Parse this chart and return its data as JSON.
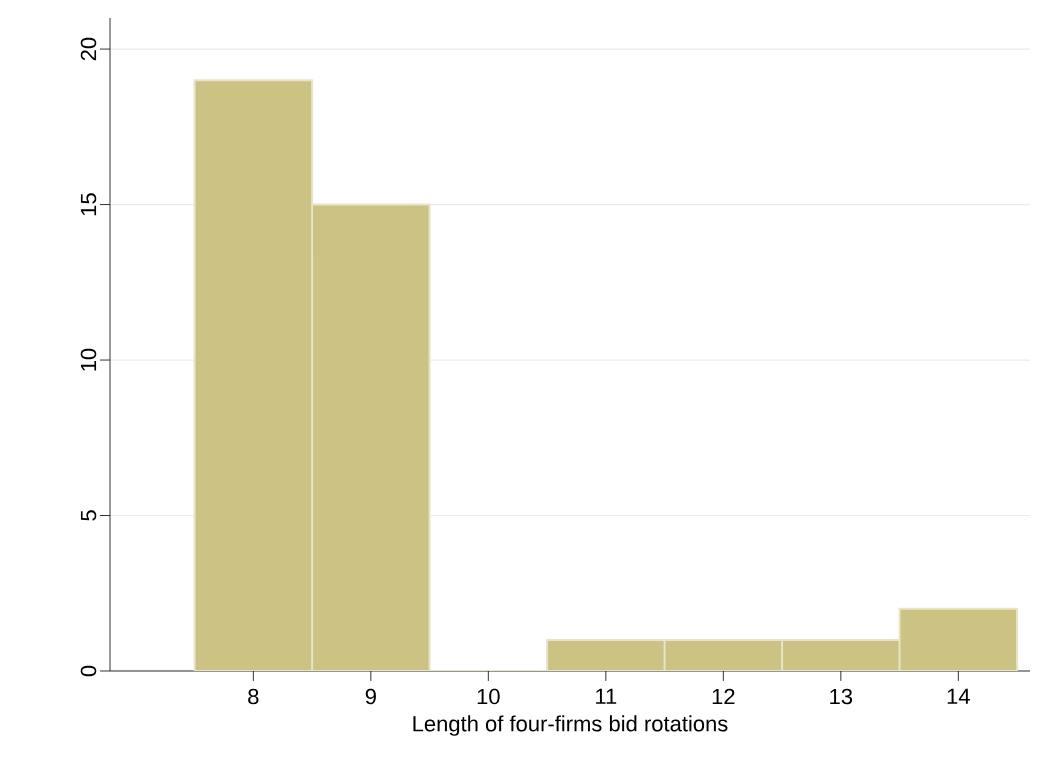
{
  "chart_data": {
    "type": "histogram",
    "xlabel": "Length of four-firms bid rotations",
    "bins": [
      7.5,
      8.5,
      9.5,
      10.5,
      11.5,
      12.5,
      13.5,
      14.5
    ],
    "values": [
      19,
      15,
      0,
      1,
      1,
      1,
      2
    ],
    "color": "#ccc283",
    "xlim": [
      6.78,
      14.61
    ],
    "ylim": [
      0,
      21
    ],
    "xticks": [
      8,
      9,
      10,
      11,
      12,
      13,
      14
    ],
    "yticks": [
      0,
      5,
      10,
      15,
      20
    ],
    "grid": "y"
  }
}
